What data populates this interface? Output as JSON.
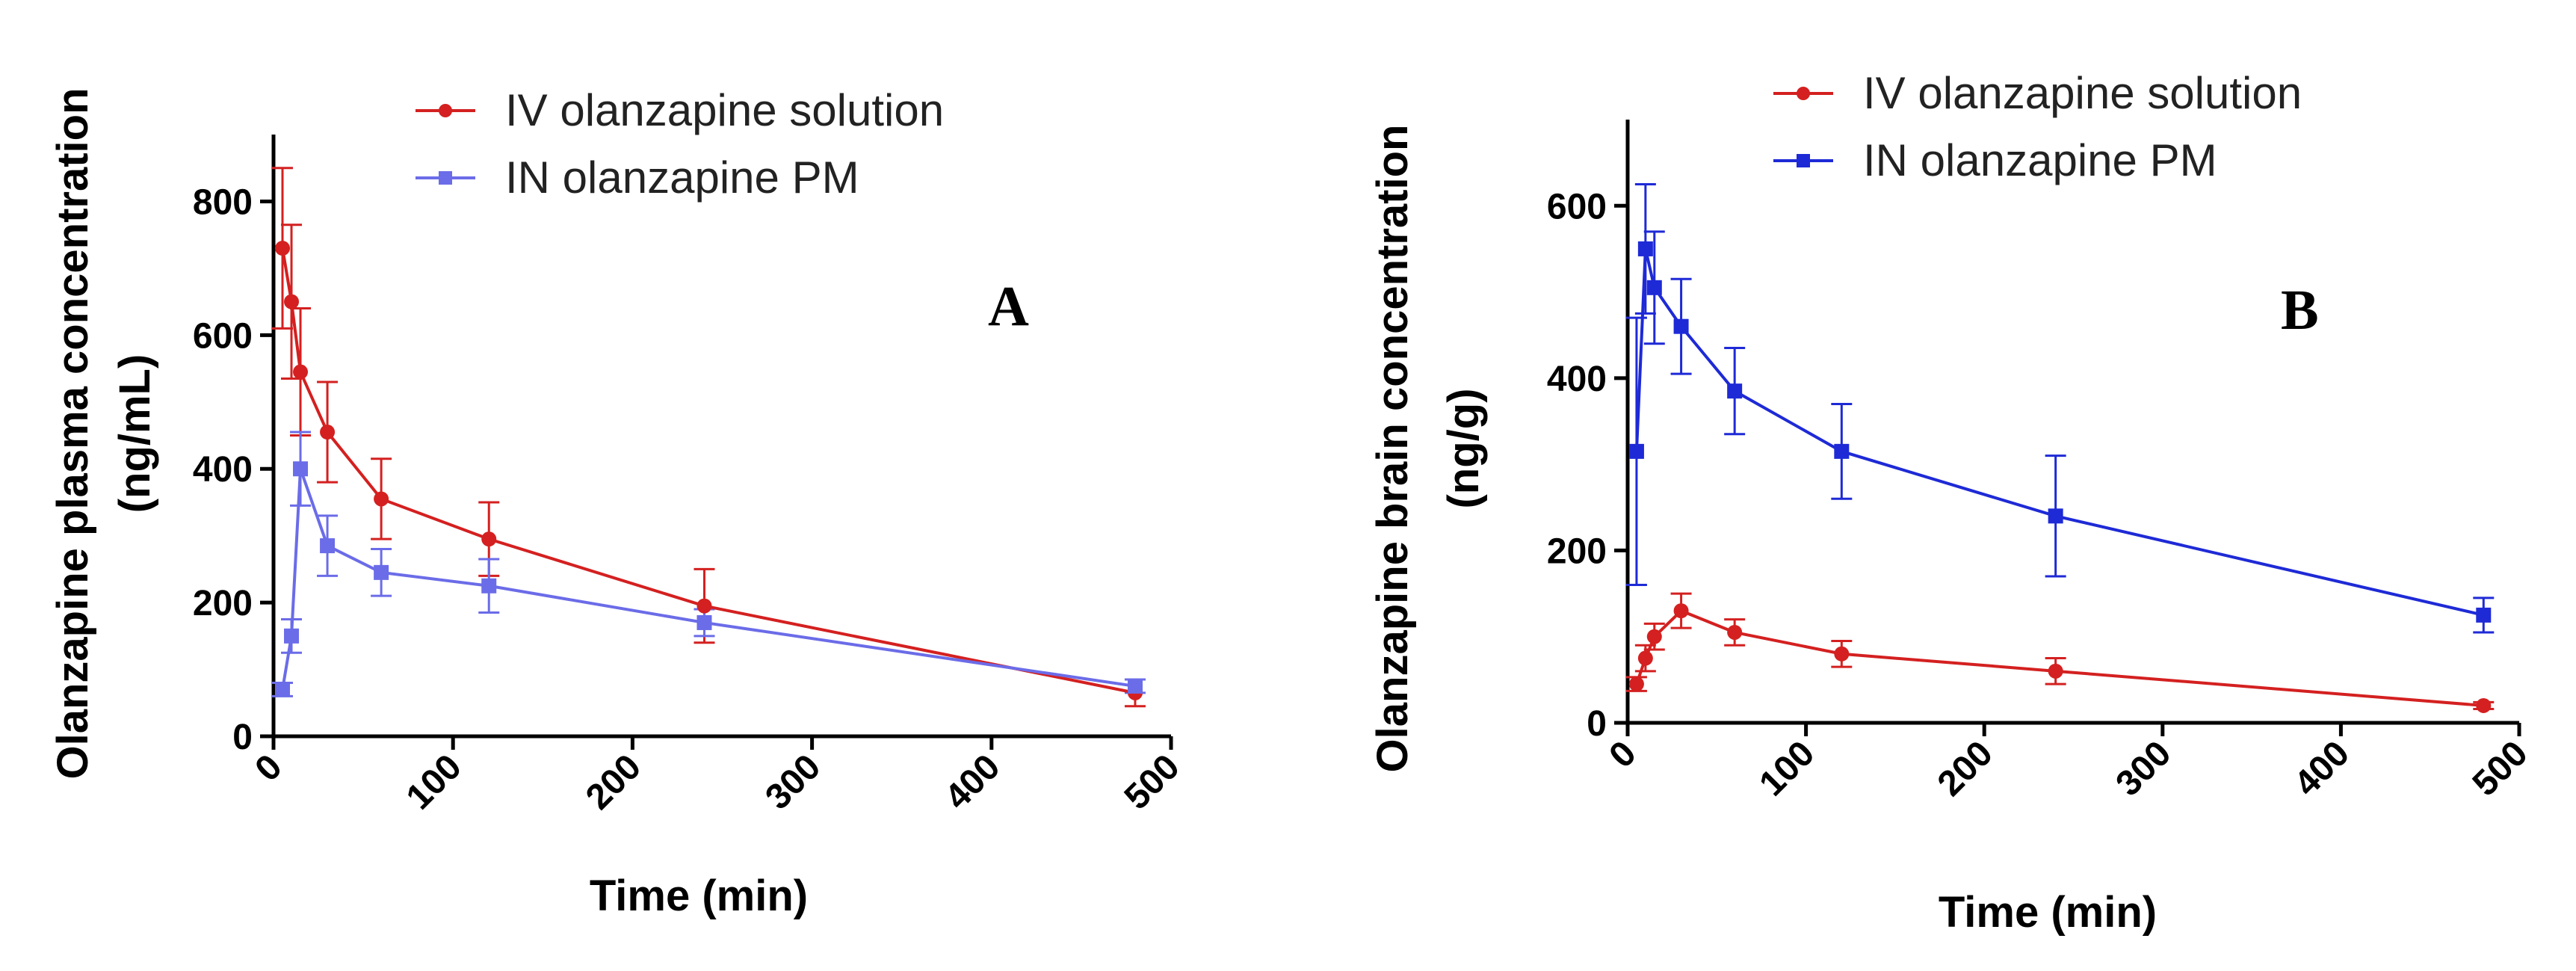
{
  "chart_data": [
    {
      "type": "line",
      "panel_label": "A",
      "xlabel": "Time (min)",
      "ylabel": [
        "Olanzapine plasma concentration",
        "(ng/mL)"
      ],
      "xlim": [
        0,
        500
      ],
      "ylim": [
        0,
        900
      ],
      "xticks": [
        0,
        100,
        200,
        300,
        400,
        500
      ],
      "yticks": [
        0,
        200,
        400,
        600,
        800
      ],
      "grid": false,
      "legend_position": "top",
      "series": [
        {
          "name": "IV olanzapine solution",
          "color": "#d42020",
          "marker": "circle",
          "x": [
            5,
            10,
            15,
            30,
            60,
            120,
            240,
            480
          ],
          "y": [
            730,
            650,
            545,
            455,
            355,
            295,
            195,
            65
          ],
          "err": [
            120,
            115,
            95,
            75,
            60,
            55,
            55,
            20
          ]
        },
        {
          "name": "IN olanzapine PM",
          "color": "#6b6ce8",
          "marker": "square",
          "x": [
            5,
            10,
            15,
            30,
            60,
            120,
            240,
            480
          ],
          "y": [
            70,
            150,
            400,
            285,
            245,
            225,
            170,
            75
          ],
          "err": [
            10,
            25,
            55,
            45,
            35,
            40,
            20,
            10
          ]
        }
      ]
    },
    {
      "type": "line",
      "panel_label": "B",
      "xlabel": "Time (min)",
      "ylabel": [
        "Olanzapine brain concentration",
        "(ng/g)"
      ],
      "xlim": [
        0,
        500
      ],
      "ylim": [
        0,
        700
      ],
      "xticks": [
        0,
        100,
        200,
        300,
        400,
        500
      ],
      "yticks": [
        0,
        200,
        400,
        600
      ],
      "grid": false,
      "legend_position": "top",
      "series": [
        {
          "name": "IV olanzapine solution",
          "color": "#d42020",
          "marker": "circle",
          "x": [
            5,
            10,
            15,
            30,
            60,
            120,
            240,
            480
          ],
          "y": [
            45,
            75,
            100,
            130,
            105,
            80,
            60,
            20
          ],
          "err": [
            8,
            15,
            15,
            20,
            15,
            15,
            15,
            4
          ]
        },
        {
          "name": "IN olanzapine PM",
          "color": "#1e2ad6",
          "marker": "square",
          "x": [
            5,
            10,
            15,
            30,
            60,
            120,
            240,
            480
          ],
          "y": [
            315,
            550,
            505,
            460,
            385,
            315,
            240,
            125
          ],
          "err": [
            155,
            75,
            65,
            55,
            50,
            55,
            70,
            20
          ]
        }
      ]
    }
  ]
}
